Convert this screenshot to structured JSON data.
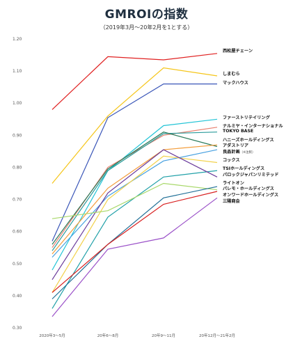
{
  "title": "GMROIの指数",
  "subtitle": "（2019年3月〜20年2月を1とする）",
  "chart_data": {
    "type": "line",
    "title": "GMROIの指数",
    "subtitle": "（2019年3月〜20年2月を1とする）",
    "xlabel": "",
    "ylabel": "",
    "categories": [
      "2020年3〜5月",
      "20年6〜8月",
      "20年9〜11月",
      "20年12月〜21年2月"
    ],
    "ylim": [
      0.3,
      1.2
    ],
    "yticks": [
      "0.30",
      "0.40",
      "0.50",
      "0.60",
      "0.70",
      "0.80",
      "0.90",
      "1.00",
      "1.10",
      "1.20"
    ],
    "grid": false,
    "legend": "direct labels at right end of each line",
    "series": [
      {
        "name": "西松屋チェーン",
        "color": "#e02020",
        "values": [
          0.98,
          1.145,
          1.135,
          1.155
        ]
      },
      {
        "name": "しまむら",
        "color": "#f5c518",
        "values": [
          0.75,
          0.96,
          1.11,
          1.085
        ]
      },
      {
        "name": "マックハウス",
        "color": "#3a56b8",
        "values": [
          0.57,
          0.955,
          1.06,
          1.06
        ]
      },
      {
        "name": "ファーストリテイリング",
        "color": "#22c4d6",
        "values": [
          0.48,
          0.79,
          0.93,
          0.95
        ]
      },
      {
        "name": "ナルミヤ・インターナショナル",
        "color": "#e87e6e",
        "values": [
          0.55,
          0.8,
          0.9,
          0.925
        ]
      },
      {
        "name": "TOKYO BASE",
        "color": "#2a9a9a",
        "values": [
          0.54,
          0.79,
          0.905,
          0.91
        ]
      },
      {
        "name": "ハニーズホールディングス",
        "color": "#2a7a5a",
        "values": [
          0.56,
          0.795,
          0.91,
          0.865
        ]
      },
      {
        "name": "アダストリア",
        "color": "#f39c3a",
        "values": [
          0.53,
          0.735,
          0.855,
          0.87
        ]
      },
      {
        "name": "良品計画",
        "note": "（※注釈）",
        "color": "#46a0e0",
        "values": [
          0.52,
          0.71,
          0.82,
          0.855
        ]
      },
      {
        "name": "コックス",
        "color": "#f2d14a",
        "values": [
          0.41,
          0.7,
          0.835,
          0.815
        ]
      },
      {
        "name": "TSIホールディングス",
        "color": "#20a0a8",
        "values": [
          0.36,
          0.645,
          0.77,
          0.79
        ]
      },
      {
        "name": "パロックジャパンリミテッド",
        "color": "#6a3a9a",
        "values": [
          0.45,
          0.72,
          0.855,
          0.77
        ]
      },
      {
        "name": "ライトオン",
        "color": "#a8d86a",
        "values": [
          0.64,
          0.665,
          0.75,
          0.73
        ]
      },
      {
        "name": "パレモ・ホールディングス",
        "color": "#1e6e96",
        "values": [
          0.39,
          0.56,
          0.705,
          0.74
        ]
      },
      {
        "name": "オンワードホールディングス",
        "color": "#d81e1e",
        "values": [
          0.41,
          0.56,
          0.685,
          0.725
        ]
      },
      {
        "name": "三陽商会",
        "color": "#9a50c8",
        "values": [
          0.335,
          0.545,
          0.58,
          0.705
        ]
      }
    ],
    "labels": [
      {
        "text": "西松屋チェーン",
        "series": 0
      },
      {
        "text": "しまむら",
        "series": 1
      },
      {
        "text": "マックハウス",
        "series": 2
      },
      {
        "text": "ファーストリテイリング",
        "series": 3
      },
      {
        "text": "ナルミヤ・インターナショナル",
        "series": 4
      },
      {
        "text": "TOKYO BASE",
        "series": 5
      },
      {
        "text": "ハニーズホールディングス",
        "series": 6
      },
      {
        "text": "アダストリア",
        "series": 7
      },
      {
        "text": "良品計画",
        "series": 8,
        "suffix": "（※注釈）"
      },
      {
        "text": "コックス",
        "series": 9
      },
      {
        "text": "TSIホールディングス",
        "series": 10
      },
      {
        "text": "パロックジャパンリミテッド",
        "series": 11
      },
      {
        "text": "ライトオン",
        "series": 12
      },
      {
        "text": "パレモ・ホールディングス",
        "series": 13
      },
      {
        "text": "オンワードホールディングス",
        "series": 14
      },
      {
        "text": "三陽商会",
        "series": 15
      }
    ]
  }
}
